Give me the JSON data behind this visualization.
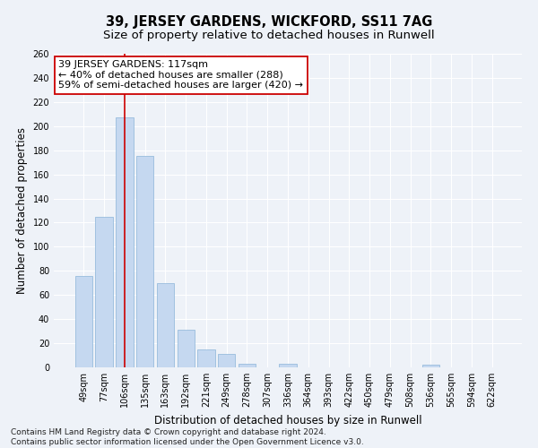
{
  "title": "39, JERSEY GARDENS, WICKFORD, SS11 7AG",
  "subtitle": "Size of property relative to detached houses in Runwell",
  "xlabel": "Distribution of detached houses by size in Runwell",
  "ylabel": "Number of detached properties",
  "categories": [
    "49sqm",
    "77sqm",
    "106sqm",
    "135sqm",
    "163sqm",
    "192sqm",
    "221sqm",
    "249sqm",
    "278sqm",
    "307sqm",
    "336sqm",
    "364sqm",
    "393sqm",
    "422sqm",
    "450sqm",
    "479sqm",
    "508sqm",
    "536sqm",
    "565sqm",
    "594sqm",
    "622sqm"
  ],
  "values": [
    76,
    125,
    207,
    175,
    70,
    31,
    15,
    11,
    3,
    0,
    3,
    0,
    0,
    0,
    0,
    0,
    0,
    2,
    0,
    0,
    0
  ],
  "bar_color": "#c5d8f0",
  "bar_edge_color": "#8ab4d8",
  "vline_x_index": 2,
  "vline_color": "#cc0000",
  "annotation_text": "39 JERSEY GARDENS: 117sqm\n← 40% of detached houses are smaller (288)\n59% of semi-detached houses are larger (420) →",
  "annotation_box_color": "#ffffff",
  "annotation_box_edge": "#cc0000",
  "ylim": [
    0,
    260
  ],
  "yticks": [
    0,
    20,
    40,
    60,
    80,
    100,
    120,
    140,
    160,
    180,
    200,
    220,
    240,
    260
  ],
  "footnote": "Contains HM Land Registry data © Crown copyright and database right 2024.\nContains public sector information licensed under the Open Government Licence v3.0.",
  "bg_color": "#eef2f8",
  "grid_color": "#ffffff",
  "title_fontsize": 10.5,
  "subtitle_fontsize": 9.5,
  "ylabel_fontsize": 8.5,
  "xlabel_fontsize": 8.5,
  "tick_fontsize": 7,
  "footnote_fontsize": 6.5,
  "annotation_fontsize": 8
}
